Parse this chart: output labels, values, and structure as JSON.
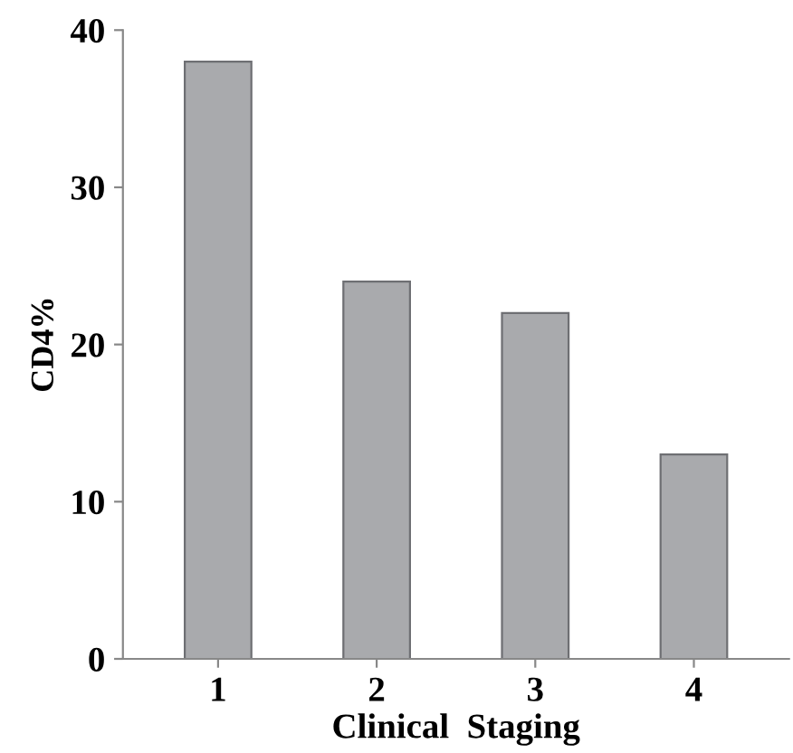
{
  "chart_data": {
    "type": "bar",
    "xlabel": "Clinical  Staging",
    "ylabel": "CD4%",
    "categories": [
      "1",
      "2",
      "3",
      "4"
    ],
    "values": [
      38,
      24,
      22,
      13
    ],
    "color": "#a9aaad",
    "ylim": [
      0,
      40
    ],
    "yticks": [
      0,
      10,
      20,
      30,
      40
    ],
    "grid": false,
    "legend": false
  }
}
